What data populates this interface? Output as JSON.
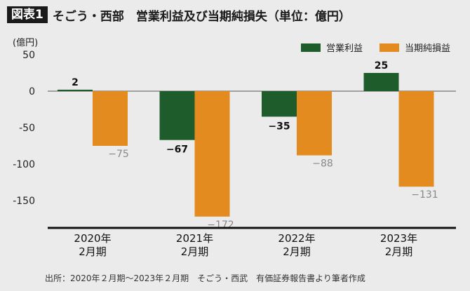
{
  "figure": {
    "badge": "図表1",
    "title": "そごう・西部　営業利益及び当期純損失（単位：億円）",
    "unit_label": "(億円)",
    "source": "出所：2020年２月期～2023年２月期　そごう・西武　有価証券報告書より筆者作成"
  },
  "colors": {
    "operating_profit": "#1f5c2c",
    "net_loss": "#e38b1e",
    "background": "#ebebeb"
  },
  "chart_data": {
    "type": "bar",
    "categories": [
      "2020年\n2月期",
      "2021年\n2月期",
      "2022年\n2月期",
      "2023年\n2月期"
    ],
    "series": [
      {
        "name": "営業利益",
        "values": [
          2,
          -67,
          -35,
          25
        ],
        "labels": [
          "2",
          "−67",
          "−35",
          "25"
        ]
      },
      {
        "name": "当期純損益",
        "values": [
          -75,
          -172,
          -88,
          -131
        ],
        "labels": [
          "−75",
          "−172",
          "−88",
          "−131"
        ]
      }
    ],
    "yticks": [
      50,
      0,
      -50,
      -100,
      -150
    ],
    "ytick_labels": [
      "50",
      "0",
      "-50",
      "-100",
      "-150"
    ],
    "ylim": [
      -180,
      50
    ],
    "grid": false,
    "legend": "top-right"
  }
}
